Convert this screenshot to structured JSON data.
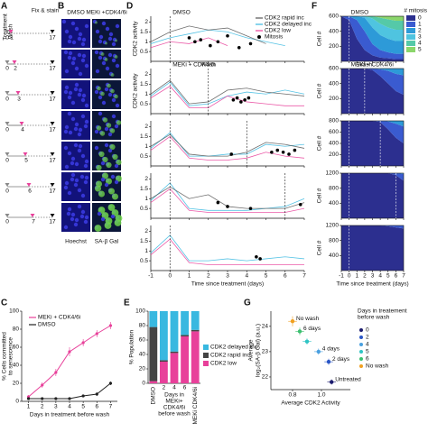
{
  "panel_a": {
    "label": "A",
    "treatment": "Treatment",
    "wash": "Wash",
    "fix": "Fix & stain",
    "start": 0,
    "end": 17,
    "washes": [
      1,
      2,
      3,
      4,
      5,
      6,
      7
    ]
  },
  "panel_b": {
    "label": "B",
    "columns": [
      "DMSO",
      "MEKi +CDK4/6i"
    ],
    "stains": [
      "Hoechst",
      "SA-β Gal"
    ]
  },
  "chart_data": [
    {
      "type": "line",
      "label": "C",
      "ylabel": [
        "% Cells committed",
        "to senescence"
      ],
      "xlabel": "Days in treatment before wash",
      "x": [
        1,
        2,
        3,
        4,
        5,
        6,
        7
      ],
      "xlim": [
        0.5,
        7.5
      ],
      "xticks": [
        1,
        2,
        3,
        4,
        5,
        6,
        7
      ],
      "ylim": [
        0,
        100
      ],
      "yticks": [
        0,
        20,
        40,
        60,
        80,
        100
      ],
      "series": [
        {
          "name": "MEKi + CDK4/6i",
          "color": "#e8409a",
          "values": [
            5,
            18,
            32,
            55,
            65,
            75,
            84
          ],
          "errors": [
            2,
            3,
            4,
            5,
            4,
            4,
            4
          ]
        },
        {
          "name": "DMSO",
          "color": "#222222",
          "values": [
            3,
            3,
            3,
            3,
            6,
            8,
            20
          ],
          "errors": [
            1,
            1,
            1,
            1,
            1,
            2,
            2
          ]
        }
      ]
    },
    {
      "type": "line",
      "label": "D",
      "ylabel": "CDK2 activity",
      "xlabel": "Time since treatment (days)",
      "x": [
        -1,
        0,
        1,
        2,
        3,
        4,
        5,
        6,
        7
      ],
      "xlim": [
        -1,
        7
      ],
      "xticks": [
        -1,
        0,
        1,
        2,
        3,
        4,
        5,
        6,
        7
      ],
      "ylim": [
        0,
        2.3
      ],
      "yticks": [
        0.5,
        1,
        1.5,
        2
      ],
      "legend": [
        {
          "name": "CDK2 rapid inc",
          "color": "#555555"
        },
        {
          "name": "CDK2 delayed inc",
          "color": "#38b8e0"
        },
        {
          "name": "CDK2 low",
          "color": "#e8409a"
        }
      ],
      "mitosis_label": "Mitosis",
      "panels": [
        {
          "vlines": [
            {
              "x": 0,
              "text": "DMSO"
            }
          ],
          "series": [
            {
              "color": "#38b8e0",
              "values": [
                0.9,
                1.2,
                1.4,
                1.6,
                1.5,
                1.2,
                1.0,
                0.8,
                null
              ]
            },
            {
              "color": "#555555",
              "values": [
                1.0,
                1.5,
                1.8,
                1.6,
                1.7,
                1.3,
                0.9,
                null,
                null
              ]
            },
            {
              "color": "#e8409a",
              "values": [
                0.7,
                1.0,
                0.9,
                1.2,
                0.8,
                null,
                null,
                null,
                null
              ]
            }
          ],
          "mitosis": {
            "x": [
              1.0,
              1.3,
              1.6,
              2.1,
              2.5,
              3.0,
              3.6,
              4.2
            ],
            "values": [
              1.2,
              1.0,
              1.1,
              0.8,
              1.0,
              1.3,
              0.7,
              0.9
            ]
          }
        },
        {
          "vlines": [
            {
              "x": 0,
              "text": "MEKi + CDK4/6i"
            },
            {
              "x": 2,
              "text": "Wash"
            }
          ],
          "series": [
            {
              "color": "#38b8e0",
              "values": [
                0.9,
                1.6,
                0.4,
                0.5,
                0.9,
                1.1,
                1.0,
                1.2,
                1.0
              ]
            },
            {
              "color": "#e8409a",
              "values": [
                0.8,
                1.4,
                0.3,
                0.3,
                0.9,
                0.6,
                0.5,
                0.4,
                0.4
              ]
            },
            {
              "color": "#555555",
              "values": [
                1.0,
                1.7,
                0.5,
                0.6,
                1.2,
                1.3,
                1.1,
                1.0,
                0.9
              ]
            }
          ],
          "mitosis": {
            "x": [
              3.3,
              3.5,
              3.7,
              3.9,
              4.1
            ],
            "values": [
              0.7,
              0.8,
              0.6,
              0.7,
              0.8
            ]
          }
        },
        {
          "vlines": [
            {
              "x": 0
            },
            {
              "x": 4
            }
          ],
          "series": [
            {
              "color": "#38b8e0",
              "values": [
                0.9,
                1.7,
                0.5,
                0.5,
                0.6,
                0.6,
                1.1,
                1.0,
                1.1
              ]
            },
            {
              "color": "#e8409a",
              "values": [
                0.8,
                1.5,
                0.4,
                0.3,
                0.3,
                0.4,
                0.7,
                0.5,
                0.4
              ]
            },
            {
              "color": "#555555",
              "values": [
                1.0,
                1.6,
                0.6,
                0.5,
                0.5,
                0.7,
                1.2,
                1.1,
                0.9
              ]
            }
          ],
          "mitosis": {
            "x": [
              3.2,
              5.3,
              5.6,
              5.9,
              6.2,
              6.5
            ],
            "values": [
              0.6,
              0.7,
              0.8,
              0.7,
              0.6,
              0.8
            ]
          }
        },
        {
          "vlines": [
            {
              "x": 0
            },
            {
              "x": 6
            }
          ],
          "series": [
            {
              "color": "#38b8e0",
              "values": [
                0.9,
                1.8,
                0.5,
                0.4,
                0.4,
                0.4,
                0.5,
                0.6,
                1.0
              ]
            },
            {
              "color": "#e8409a",
              "values": [
                0.8,
                1.5,
                0.4,
                0.3,
                0.3,
                0.3,
                0.3,
                0.3,
                0.5
              ]
            },
            {
              "color": "#555555",
              "values": [
                1.0,
                1.6,
                1.0,
                1.2,
                0.6,
                0.5,
                0.5,
                0.5,
                0.8
              ]
            }
          ],
          "mitosis": {
            "x": [
              2.5,
              3.0,
              4.2,
              6.8
            ],
            "values": [
              0.8,
              0.6,
              0.5,
              0.7
            ]
          }
        },
        {
          "vlines": [
            {
              "x": 0
            }
          ],
          "series": [
            {
              "color": "#38b8e0",
              "values": [
                0.9,
                1.8,
                0.5,
                0.5,
                0.6,
                0.5,
                0.6,
                0.7,
                0.6
              ]
            },
            {
              "color": "#e8409a",
              "values": [
                0.8,
                1.6,
                0.4,
                0.3,
                0.3,
                0.3,
                0.3,
                0.3,
                0.3
              ]
            }
          ],
          "mitosis": {
            "x": [
              4.5,
              4.7
            ],
            "values": [
              0.7,
              0.6
            ]
          }
        }
      ]
    },
    {
      "type": "stacked_bar",
      "label": "E",
      "ylabel": "% Population",
      "xlabel": [
        "Days in",
        "MEKi+",
        "CDK4/6i",
        "before wash"
      ],
      "categories": [
        "DMSO",
        "2",
        "4",
        "6",
        "MEKi CDK4/6i"
      ],
      "ylim": [
        0,
        100
      ],
      "yticks": [
        0,
        20,
        40,
        60,
        80,
        100
      ],
      "series": [
        {
          "name": "CDK2 low",
          "color": "#e8409a",
          "values": [
            3,
            30,
            42,
            65,
            72
          ]
        },
        {
          "name": "CDK2 rapid inc",
          "color": "#444444",
          "values": [
            75,
            2,
            2,
            2,
            2
          ]
        },
        {
          "name": "CDK2 delayed inc",
          "color": "#38b8e0",
          "values": [
            22,
            68,
            56,
            33,
            26
          ]
        }
      ]
    },
    {
      "type": "area",
      "label": "F",
      "ylabel": "Cell #",
      "xlabel": "Time since treatment (days)",
      "x": [
        -1,
        0,
        1,
        2,
        3,
        4,
        5,
        6,
        7
      ],
      "xlim": [
        -1,
        7
      ],
      "xticks": [
        -1,
        0,
        1,
        2,
        3,
        4,
        5,
        6,
        7
      ],
      "legend_title": "# mitosis",
      "classes": [
        {
          "name": "0",
          "color": "#2c2f8f"
        },
        {
          "name": "1",
          "color": "#3a5bd0"
        },
        {
          "name": "2",
          "color": "#2d9ad8"
        },
        {
          "name": "3",
          "color": "#4fc4e0"
        },
        {
          "name": "4",
          "color": "#55c9a8"
        },
        {
          "name": "5",
          "color": "#8bd66b"
        }
      ],
      "panels": [
        {
          "ylim": [
            0,
            600
          ],
          "yticks": [
            200,
            400,
            600
          ],
          "vlines": [
            {
              "x": 0,
              "text": "DMSO"
            }
          ],
          "series": [
            [
              600,
              550,
              300,
              150,
              80,
              50,
              40,
              30,
              30
            ],
            [
              0,
              50,
              250,
              250,
              150,
              100,
              80,
              70,
              70
            ],
            [
              0,
              0,
              50,
              180,
              220,
              200,
              180,
              170,
              170
            ],
            [
              0,
              0,
              0,
              20,
              120,
              150,
              150,
              150,
              150
            ],
            [
              0,
              0,
              0,
              0,
              30,
              80,
              110,
              120,
              120
            ],
            [
              0,
              0,
              0,
              0,
              0,
              20,
              40,
              60,
              60
            ]
          ]
        },
        {
          "ylim": [
            0,
            600
          ],
          "yticks": [
            200,
            400,
            600
          ],
          "vlines": [
            {
              "x": 0,
              "text": "MEKi + CDK4/6i"
            },
            {
              "x": 2,
              "text": "Wash"
            }
          ],
          "series": [
            [
              600,
              600,
              600,
              600,
              580,
              500,
              400,
              300,
              250
            ],
            [
              0,
              0,
              0,
              0,
              20,
              90,
              170,
              230,
              260
            ],
            [
              0,
              0,
              0,
              0,
              0,
              10,
              30,
              70,
              90
            ]
          ]
        },
        {
          "ylim": [
            0,
            800
          ],
          "yticks": [
            200,
            400,
            600,
            800
          ],
          "vlines": [
            {
              "x": 0
            },
            {
              "x": 4
            }
          ],
          "series": [
            [
              800,
              800,
              800,
              800,
              800,
              780,
              650,
              500,
              400
            ],
            [
              0,
              0,
              0,
              0,
              0,
              20,
              140,
              250,
              300
            ],
            [
              0,
              0,
              0,
              0,
              0,
              0,
              10,
              50,
              100
            ]
          ]
        },
        {
          "ylim": [
            0,
            1200
          ],
          "yticks": [
            400,
            800,
            1200
          ],
          "vlines": [
            {
              "x": 0
            },
            {
              "x": 6
            }
          ],
          "series": [
            [
              1200,
              1200,
              1200,
              1200,
              1200,
              1200,
              1200,
              1150,
              1000
            ],
            [
              0,
              0,
              0,
              0,
              0,
              0,
              0,
              50,
              180
            ],
            [
              0,
              0,
              0,
              0,
              0,
              0,
              0,
              0,
              20
            ]
          ]
        },
        {
          "ylim": [
            0,
            1200
          ],
          "yticks": [
            400,
            800,
            1200
          ],
          "vlines": [
            {
              "x": 0
            }
          ],
          "series": [
            [
              1200,
              1200,
              1200,
              1200,
              1200,
              1200,
              1180,
              1150,
              1120
            ],
            [
              0,
              0,
              0,
              0,
              0,
              0,
              20,
              50,
              80
            ]
          ]
        }
      ]
    },
    {
      "type": "scatter",
      "label": "G",
      "xlabel": "Average CDK2 Activity",
      "ylabel": [
        "Average",
        "log₂(SA-β Gal) (a.u.)"
      ],
      "xlim": [
        0.65,
        1.2
      ],
      "xticks": [
        0.8,
        {
          "value": 1,
          "label": "1.0"
        }
      ],
      "ylim": [
        21.5,
        24.6
      ],
      "yticks": [
        22,
        23,
        24
      ],
      "legend_title": [
        "Days in treatement",
        "before wash"
      ],
      "series": [
        {
          "name": "0",
          "color": "#1c1c6e",
          "x": [
            1.07
          ],
          "values": [
            21.8
          ],
          "xerr": [
            0.03
          ],
          "yerr": [
            0.1
          ],
          "annotation": "Untreated"
        },
        {
          "name": "2",
          "color": "#2a56c6",
          "x": [
            1.05
          ],
          "values": [
            22.6
          ],
          "xerr": [
            0.03
          ],
          "yerr": [
            0.12
          ],
          "annotation": "2 days"
        },
        {
          "name": "4",
          "color": "#4aa0e0",
          "x": [
            0.98
          ],
          "values": [
            23.0
          ],
          "xerr": [
            0.03
          ],
          "yerr": [
            0.12
          ],
          "annotation": "4 days"
        },
        {
          "name": "5",
          "color": "#2fc4c4",
          "x": [
            0.9
          ],
          "values": [
            23.4
          ],
          "xerr": [
            0.03
          ],
          "yerr": [
            0.12
          ]
        },
        {
          "name": "6",
          "color": "#3cc070",
          "x": [
            0.85
          ],
          "values": [
            23.8
          ],
          "xerr": [
            0.03
          ],
          "yerr": [
            0.15
          ],
          "annotation": "6 days"
        },
        {
          "name": "No wash",
          "color": "#f0a020",
          "x": [
            0.8
          ],
          "values": [
            24.2
          ],
          "xerr": [
            0.03
          ],
          "yerr": [
            0.2
          ],
          "annotation": "No wash"
        }
      ]
    }
  ]
}
